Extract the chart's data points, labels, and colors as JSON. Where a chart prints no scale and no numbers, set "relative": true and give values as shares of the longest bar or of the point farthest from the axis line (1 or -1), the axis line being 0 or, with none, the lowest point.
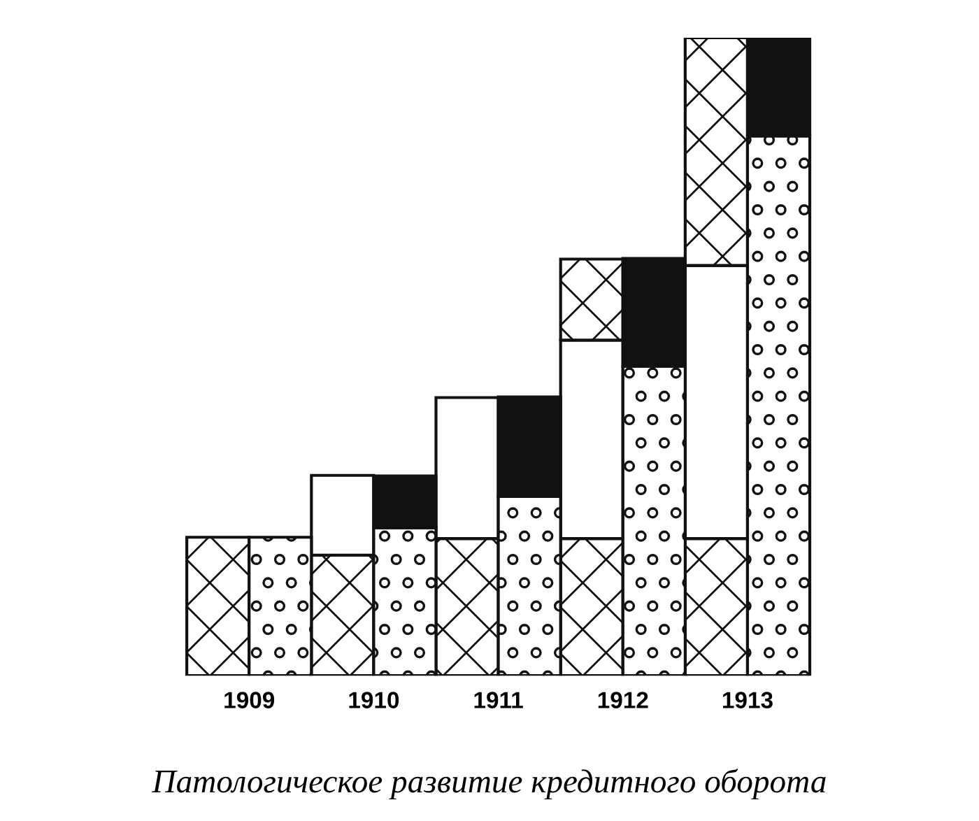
{
  "chart_data": {
    "type": "bar",
    "stacked": true,
    "relative": true,
    "title": "Патологическое развитие кредитного оборота",
    "categories": [
      "1909",
      null,
      "1910",
      null,
      "1911",
      null,
      "1912",
      null,
      "1913",
      null
    ],
    "tick_labels": "x",
    "grid": false,
    "series": [
      {
        "color": "#ffffff",
        "values": [
          0.217,
          null,
          0.189,
          null,
          0.215,
          null,
          0.215,
          null,
          0.215,
          null
        ]
      },
      {
        "color": "#ffffff",
        "values": [
          null,
          null,
          0.125,
          null,
          0.221,
          null,
          0.311,
          null,
          0.428,
          null
        ]
      },
      {
        "color": "#ffffff",
        "values": [
          null,
          null,
          null,
          null,
          null,
          null,
          0.127,
          null,
          0.357,
          null
        ]
      },
      {
        "color": "#ffffff",
        "values": [
          null,
          0.217,
          null,
          0.232,
          null,
          0.281,
          null,
          0.485,
          null,
          0.846
        ]
      },
      {
        "color": "#111111",
        "values": [
          null,
          null,
          null,
          0.081,
          null,
          0.156,
          null,
          0.169,
          null,
          0.154
        ]
      }
    ]
  }
}
